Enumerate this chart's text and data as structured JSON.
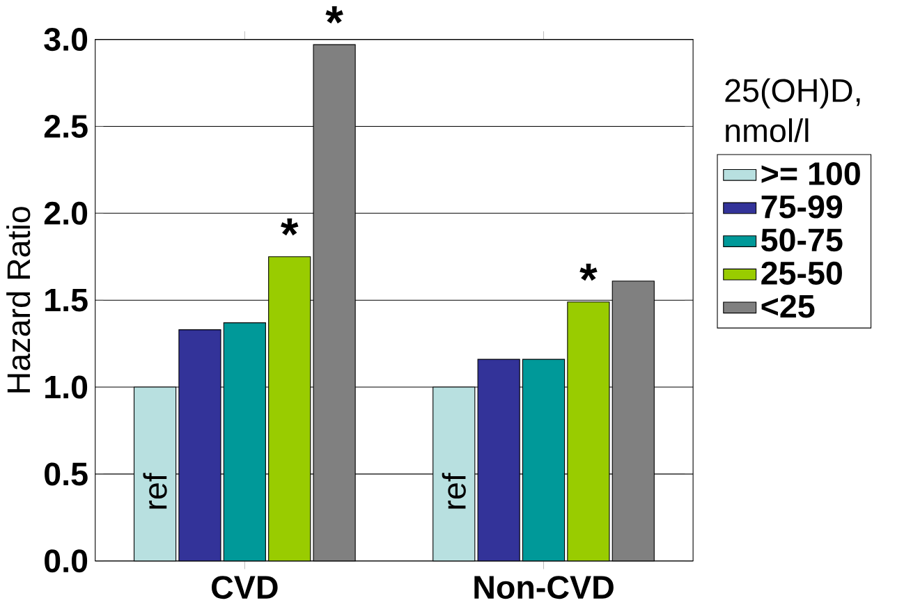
{
  "chart_data": {
    "type": "bar",
    "ylabel": "Hazard Ratio",
    "legend_title": "25(OH)D, nmol/l",
    "categories": [
      "CVD",
      "Non-CVD"
    ],
    "series": [
      {
        "name": ">= 100",
        "color": "#b8e0e0",
        "values": [
          1.0,
          1.0
        ],
        "value_labels": [
          "ref",
          "ref"
        ]
      },
      {
        "name": "75-99",
        "color": "#333399",
        "values": [
          1.33,
          1.16
        ]
      },
      {
        "name": "50-75",
        "color": "#009999",
        "values": [
          1.37,
          1.16
        ]
      },
      {
        "name": "25-50",
        "color": "#99cc00",
        "values": [
          1.75,
          1.49
        ]
      },
      {
        "name": "<25",
        "color": "#808080",
        "values": [
          2.97,
          1.61
        ]
      }
    ],
    "ylim": [
      0,
      3
    ],
    "yticks": [
      {
        "value": 0,
        "label": "0.0"
      },
      {
        "value": 0.5,
        "label": "0.5"
      },
      {
        "value": 1,
        "label": "1.0"
      },
      {
        "value": 1.5,
        "label": "1.5"
      },
      {
        "value": 2,
        "label": "2.0"
      },
      {
        "value": 2.5,
        "label": "2.5"
      },
      {
        "value": 3,
        "label": "3.0"
      }
    ],
    "grid": "y",
    "legend": "right",
    "annotations": [
      "*",
      "*",
      "*"
    ]
  }
}
